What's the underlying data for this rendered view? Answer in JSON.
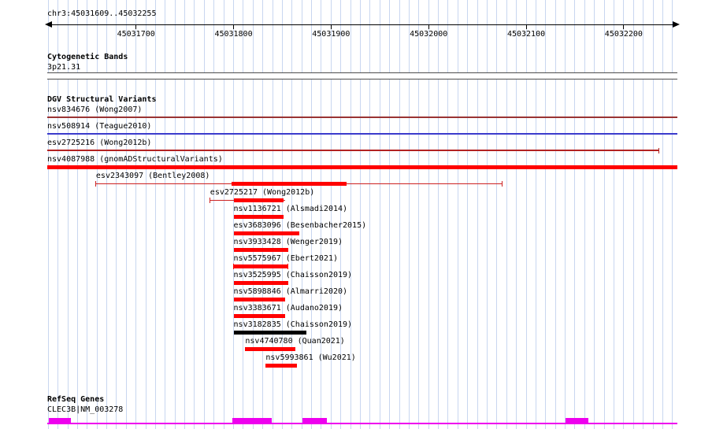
{
  "region": {
    "title": "chr3:45031609..45032255",
    "chrom": "chr3",
    "start": 45031609,
    "end": 45032255
  },
  "ruler": {
    "ticks": [
      45031700,
      45031800,
      45031900,
      45032000,
      45032100,
      45032200
    ]
  },
  "cytobands": {
    "header": "Cytogenetic Bands",
    "band": "3p21.31"
  },
  "dgv": {
    "header": "DGV Structural Variants",
    "variants": [
      {
        "label": "nsv834676 (Wong2007)",
        "type": "line",
        "color": "#993333",
        "start": 45031609,
        "end": 45032255
      },
      {
        "label": "nsv508914 (Teague2010)",
        "type": "line",
        "color": "#3b3bcc",
        "start": 45031609,
        "end": 45032255
      },
      {
        "label": "esv2725216 (Wong2012b)",
        "type": "line",
        "color": "#b22222",
        "start": 45031609,
        "end": 45032236,
        "ticks": "right"
      },
      {
        "label": "nsv4087988 (gnomADStructuralVariants)",
        "type": "bar",
        "color": "#ff0000",
        "start": 45031609,
        "end": 45032255
      },
      {
        "label": "esv2343097 (Bentley2008)",
        "type": "ci",
        "color": "#ff0000",
        "line_color": "#cc2222",
        "start": 45031659,
        "end": 45032075,
        "core_start": 45031798,
        "core_end": 45031916,
        "ticks": "both"
      },
      {
        "label": "esv2725217 (Wong2012b)",
        "type": "ci",
        "color": "#ff0000",
        "line_color": "#cc2222",
        "start": 45031776,
        "end": 45031853,
        "core_start": 45031800,
        "core_end": 45031851,
        "ticks": "left"
      },
      {
        "label": "nsv1136721 (Alsmadi2014)",
        "type": "bar",
        "color": "#ff0000",
        "start": 45031800,
        "end": 45031851
      },
      {
        "label": "esv3683096 (Besenbacher2015)",
        "type": "bar",
        "color": "#ff0000",
        "start": 45031800,
        "end": 45031867
      },
      {
        "label": "nsv3933428 (Wenger2019)",
        "type": "bar",
        "color": "#ff0000",
        "start": 45031800,
        "end": 45031856
      },
      {
        "label": "nsv5575967 (Ebert2021)",
        "type": "bar",
        "color": "#ff0000",
        "start": 45031800,
        "end": 45031856,
        "ticks": "both"
      },
      {
        "label": "nsv3525995 (Chaisson2019)",
        "type": "bar",
        "color": "#ff0000",
        "start": 45031800,
        "end": 45031856
      },
      {
        "label": "nsv5898846 (Almarri2020)",
        "type": "bar",
        "color": "#ff0000",
        "start": 45031800,
        "end": 45031853
      },
      {
        "label": "nsv3383671 (Audano2019)",
        "type": "bar",
        "color": "#ff0000",
        "start": 45031800,
        "end": 45031853
      },
      {
        "label": "nsv3182835 (Chaisson2019)",
        "type": "bar",
        "color": "#000000",
        "start": 45031800,
        "end": 45031875
      },
      {
        "label": "nsv4740780 (Quan2021)",
        "type": "bar",
        "color": "#ff0000",
        "start": 45031812,
        "end": 45031863
      },
      {
        "label": "nsv5993861 (Wu2021)",
        "type": "bar",
        "color": "#ff0000",
        "start": 45031833,
        "end": 45031865
      }
    ]
  },
  "refseq": {
    "header": "RefSeq Genes",
    "gene": "CLEC3B|NM_003278",
    "color": "#ee00ee",
    "exons": [
      {
        "start": 45031611,
        "end": 45031633
      },
      {
        "start": 45031799,
        "end": 45031839
      },
      {
        "start": 45031871,
        "end": 45031896
      },
      {
        "start": 45032140,
        "end": 45032164
      }
    ]
  },
  "colors": {
    "grid": "#c8d6f0",
    "axis": "#000000",
    "background": "#ffffff",
    "cytoband_border": "#4d4d4d"
  }
}
